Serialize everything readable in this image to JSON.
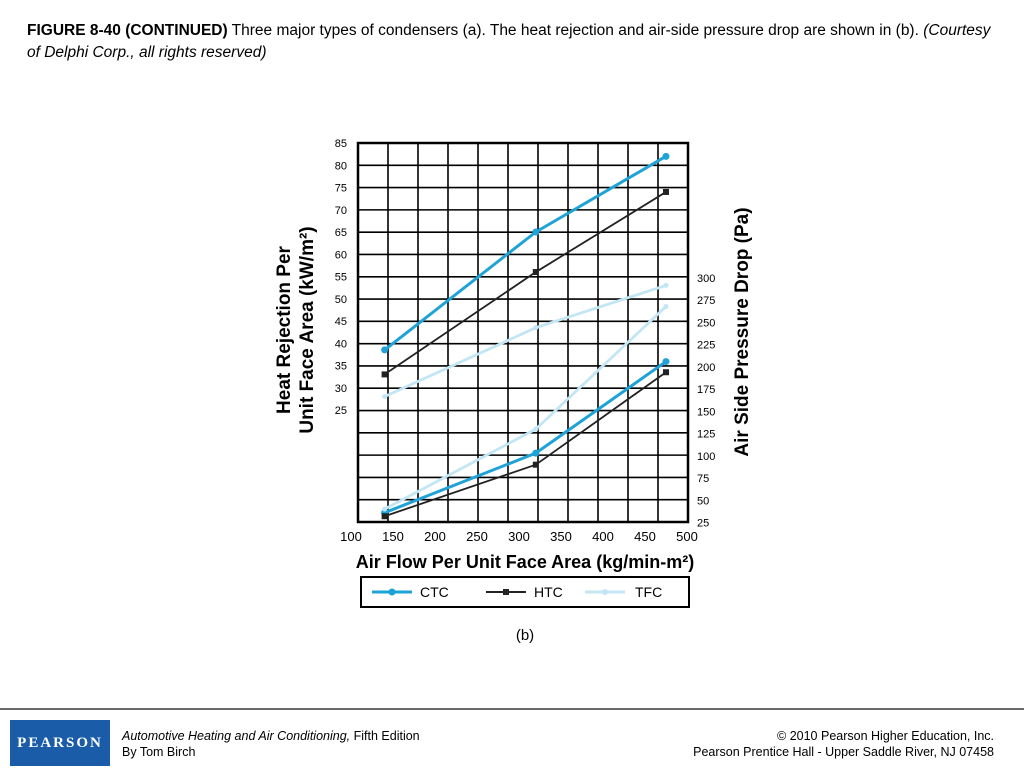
{
  "caption": {
    "label": "FIGURE 8-40 (CONTINUED)",
    "text": " Three major types of condensers (a). The heat rejection and air-side pressure drop are shown in (b). ",
    "credit": "(Courtesy of Delphi Corp., all rights reserved)"
  },
  "chart_data": {
    "type": "line",
    "xlabel": "Air Flow Per Unit Face Area (kg/min-m²)",
    "ylabel_left_line1": "Heat Rejection Per",
    "ylabel_left_line2": "Unit Face Area (kW/m²)",
    "ylabel_right": "Air Side Pressure Drop (Pa)",
    "sublabel": "(b)",
    "xlim": [
      100,
      500
    ],
    "x_ticks": [
      "100",
      "150",
      "200",
      "250",
      "300",
      "350",
      "400",
      "450",
      "500"
    ],
    "y_left_ticks": [
      "85",
      "80",
      "75",
      "70",
      "65",
      "60",
      "55",
      "50",
      "45",
      "40",
      "35",
      "30",
      "25"
    ],
    "y_right_ticks": [
      "300",
      "275",
      "250",
      "225",
      "200",
      "175",
      "150",
      "125",
      "100",
      "75",
      "50",
      "25"
    ],
    "grid": true,
    "legend_position": "bottom",
    "heat_rejection_series": [
      {
        "name": "CTC",
        "color": "#1fa3d6",
        "x": [
          140,
          320,
          475
        ],
        "y": [
          38.5,
          65,
          82
        ]
      },
      {
        "name": "HTC",
        "color": "#222222",
        "x": [
          140,
          320,
          475
        ],
        "y": [
          33,
          56,
          74
        ]
      },
      {
        "name": "TFC",
        "color": "#c3e6f5",
        "x": [
          140,
          320,
          475
        ],
        "y": [
          28,
          43.5,
          53
        ]
      }
    ],
    "pressure_drop_series": [
      {
        "name": "CTC",
        "color": "#1fa3d6",
        "x": [
          140,
          320,
          475
        ],
        "y": [
          36,
          103,
          206
        ]
      },
      {
        "name": "HTC",
        "color": "#222222",
        "x": [
          140,
          320,
          475
        ],
        "y": [
          32,
          90,
          194
        ]
      },
      {
        "name": "TFC",
        "color": "#c3e6f5",
        "x": [
          140,
          320,
          475
        ],
        "y": [
          40,
          130,
          268
        ]
      }
    ]
  },
  "footer": {
    "logo": "PEARSON",
    "book_title": "Automotive Heating and Air Conditioning,",
    "edition": " Fifth Edition",
    "author": "By Tom Birch",
    "copyright": "© 2010 Pearson Higher Education, Inc.",
    "publisher": "Pearson Prentice Hall - Upper Saddle River, NJ 07458"
  }
}
